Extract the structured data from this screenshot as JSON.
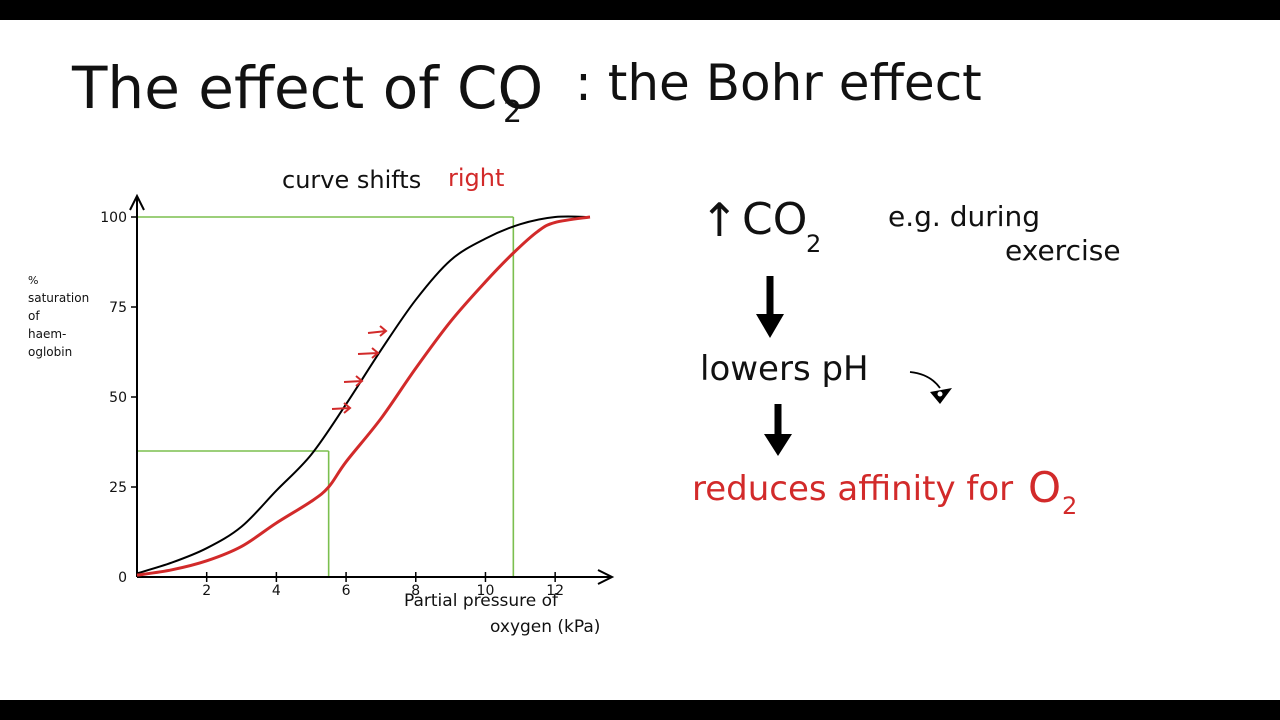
{
  "title": {
    "text": "The effect of CO",
    "sub": "2",
    "rest": ":   the  Bohr effect"
  },
  "chart_data": {
    "type": "line",
    "caption_prefix": "curve shifts ",
    "caption_highlight": "right",
    "xlabel_line1": "Partial pressure of",
    "xlabel_line2": "oxygen (kPa)",
    "ylabel_lines": [
      "%",
      "saturation",
      "of",
      "haem-",
      "oglobin"
    ],
    "x_ticks": [
      "2",
      "4",
      "6",
      "8",
      "10",
      "12"
    ],
    "y_ticks": [
      "0",
      "25",
      "50",
      "75",
      "100"
    ],
    "xlim": [
      0,
      13
    ],
    "ylim": [
      0,
      100
    ],
    "series": [
      {
        "color": "#000000",
        "points": [
          [
            0,
            1
          ],
          [
            1,
            4
          ],
          [
            2,
            8
          ],
          [
            3,
            14
          ],
          [
            4,
            24
          ],
          [
            5,
            34
          ],
          [
            6,
            48
          ],
          [
            7,
            63
          ],
          [
            8,
            77
          ],
          [
            9,
            88
          ],
          [
            10,
            94
          ],
          [
            11,
            98
          ],
          [
            12,
            100
          ],
          [
            13,
            100
          ]
        ]
      },
      {
        "color": "#d22a2a",
        "points": [
          [
            0,
            0.5
          ],
          [
            1,
            2
          ],
          [
            2,
            4.5
          ],
          [
            3,
            8.5
          ],
          [
            4,
            15
          ],
          [
            5,
            21
          ],
          [
            5.5,
            25
          ],
          [
            6,
            32
          ],
          [
            7,
            44
          ],
          [
            8,
            58
          ],
          [
            9,
            71
          ],
          [
            10,
            82
          ],
          [
            10.8,
            90
          ],
          [
            11.5,
            96
          ],
          [
            12,
            98.5
          ],
          [
            13,
            100
          ]
        ]
      }
    ],
    "guide_color": "#7bbf4e",
    "guides": [
      {
        "x": 5.5,
        "y": 35
      },
      {
        "x": 10.8,
        "y": 100
      }
    ]
  },
  "flow": {
    "step1_arrow": "↑",
    "step1_text": "CO",
    "step1_sub": "2",
    "example_line1": "e.g.  during",
    "example_line2": "exercise",
    "step2_text": "lowers pH",
    "step3_text_red": "reduces affinity for ",
    "step3_o": "O",
    "step3_sub": "2"
  }
}
